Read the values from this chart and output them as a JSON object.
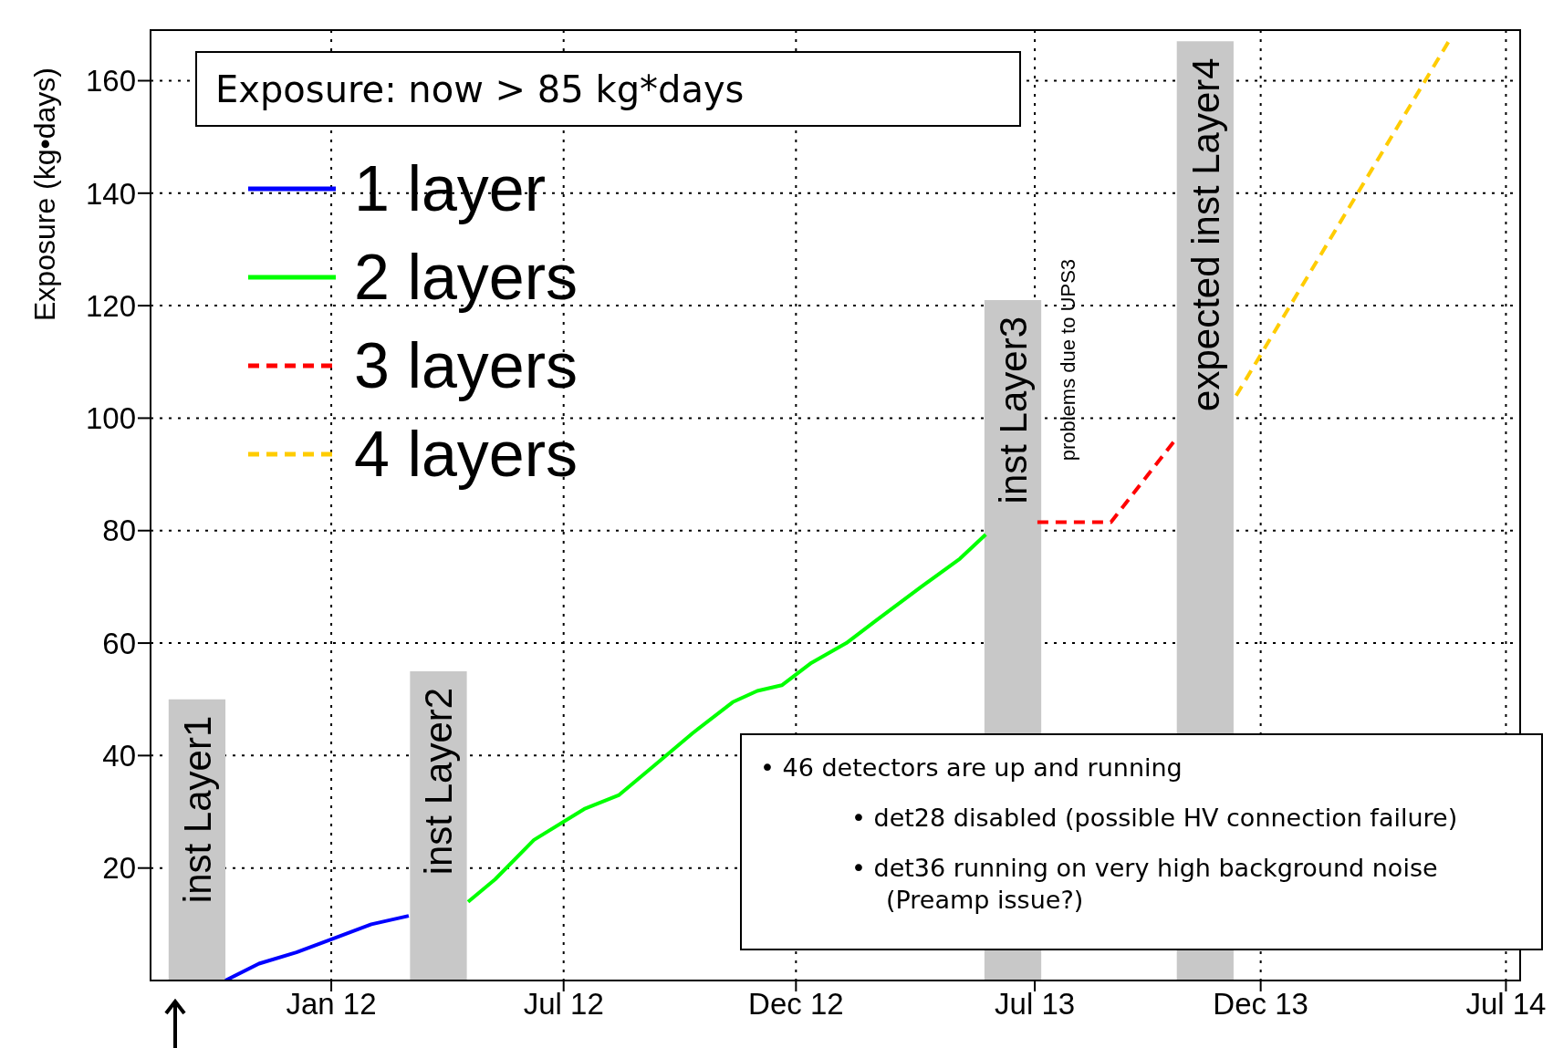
{
  "chart_data": {
    "type": "line",
    "ylabel": "Exposure (kg•days)",
    "xlim": [
      "2011-08-16",
      "2014-07-12"
    ],
    "xticks": [
      {
        "value": "2012-01-03",
        "label": "Jan 12"
      },
      {
        "value": "2012-07-01",
        "label": "Jul 12"
      },
      {
        "value": "2012-12-28",
        "label": "Dec 12"
      },
      {
        "value": "2013-07-01",
        "label": "Jul 13"
      },
      {
        "value": "2013-12-23",
        "label": "Dec 13"
      },
      {
        "value": "2014-07-01",
        "label": "Jul 14"
      }
    ],
    "ylim": [
      0,
      169
    ],
    "yticks": [
      20,
      40,
      60,
      80,
      100,
      120,
      140,
      160
    ],
    "grid": true,
    "legend": "top left",
    "series": [
      {
        "type": "bar",
        "color": "#c8c8c8",
        "x": [
          "2011-09-21",
          "2012-03-26",
          "2013-06-14",
          "2013-11-10"
        ],
        "values": [
          50,
          55,
          121,
          167
        ]
      },
      {
        "name": "1 layer",
        "color": "#0000ff",
        "line_style": "solid",
        "x": [
          "2011-10-13",
          "2011-11-08",
          "2011-12-07",
          "2012-01-03",
          "2012-02-03",
          "2012-03-03"
        ],
        "values": [
          0,
          3,
          5,
          7.3,
          10,
          11.5
        ]
      },
      {
        "name": "2 layers",
        "color": "#00ff00",
        "line_style": "solid",
        "x": [
          "2012-04-18",
          "2012-05-09",
          "2012-06-08",
          "2012-07-17",
          "2012-08-13",
          "2012-09-08",
          "2012-10-09",
          "2012-11-09",
          "2012-11-28",
          "2012-12-17",
          "2013-01-09",
          "2013-02-05",
          "2013-02-28",
          "2013-04-04",
          "2013-05-04",
          "2013-05-24"
        ],
        "values": [
          14,
          18,
          25,
          30.5,
          33,
          38,
          44,
          49.5,
          51.5,
          52.5,
          56.5,
          60,
          64,
          70,
          75,
          79.3
        ]
      },
      {
        "name": "3 layers",
        "color": "#ff0000",
        "line_style": "dashed",
        "x": [
          "2013-07-03",
          "2013-08-29",
          "2013-10-19"
        ],
        "values": [
          81.5,
          81.5,
          96.5
        ]
      },
      {
        "name": "4 layers",
        "color": "#ffcc00",
        "line_style": "dashed",
        "x": [
          "2013-12-04",
          "2014-05-19"
        ],
        "values": [
          104,
          167.5
        ]
      }
    ],
    "annotations": [
      "Exposure: now > 85 kg*days",
      "• 46 detectors are up and running",
      "• det28 disabled (possible HV connection failure)",
      "• det36 running on very high background noise (Preamp issue?)",
      "inst Layer1",
      "inst Layer2",
      "inst Layer3",
      "expected inst Layer4",
      "problems due to UPS3"
    ]
  }
}
